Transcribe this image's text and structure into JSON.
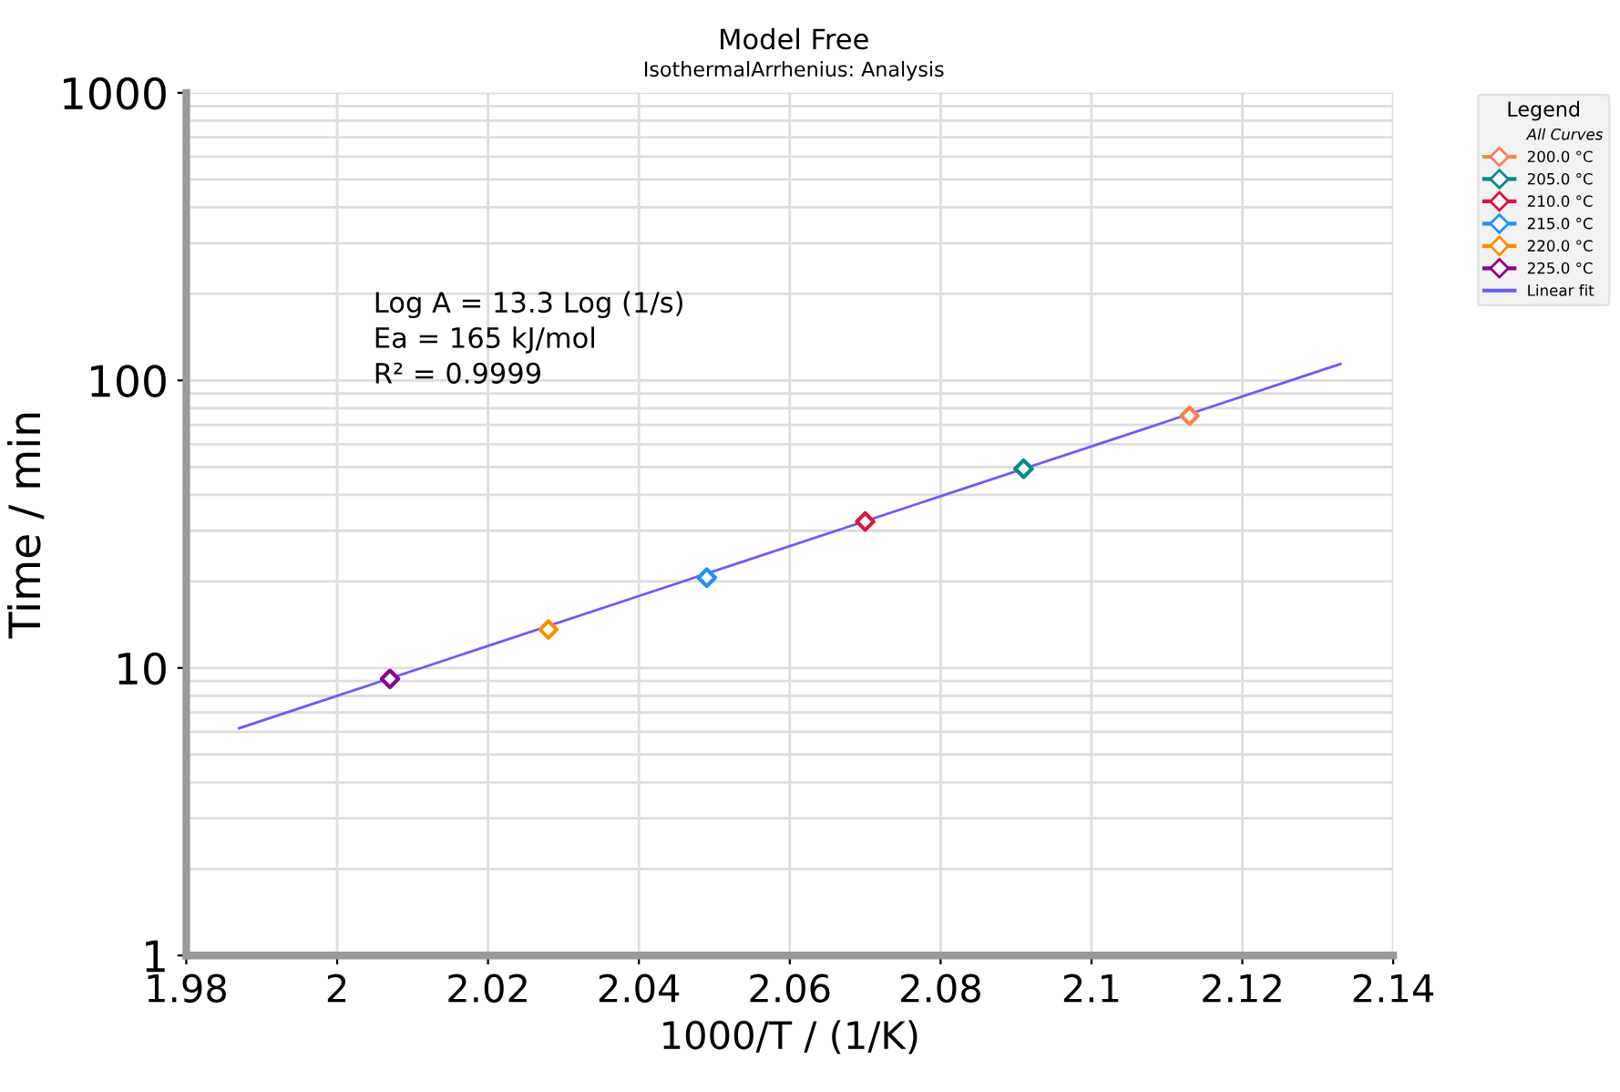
{
  "chart_data": {
    "type": "scatter",
    "title": "Model Free",
    "subtitle": "IsothermalArrhenius: Analysis",
    "xlabel": "1000/T / (1/K)",
    "ylabel": "Time / min",
    "legend_title": "Legend",
    "annotations": [
      "Log A = 13.3 Log (1/s)\nEa = 165 kJ/mol\nR² = 0.9999",
      "All Curves"
    ],
    "log": "y",
    "xlim": [
      1.98,
      2.14
    ],
    "xticks": [
      1.98,
      2,
      2.02,
      2.04,
      2.06,
      2.08,
      2.1,
      2.12,
      2.14
    ],
    "ylim": [
      1,
      1000
    ],
    "yticks": [
      1,
      10,
      100,
      1000
    ],
    "grid": true,
    "legend": "right",
    "marker": "diamond",
    "series": [
      {
        "name": "200.0 °C",
        "color": "#ff7f50",
        "x": [
          2.113
        ],
        "values": [
          75.3
        ]
      },
      {
        "name": "205.0 °C",
        "color": "#008b8b",
        "x": [
          2.091
        ],
        "values": [
          49.3
        ]
      },
      {
        "name": "210.0 °C",
        "color": "#dc143c",
        "x": [
          2.07
        ],
        "values": [
          32.3
        ]
      },
      {
        "name": "215.0 °C",
        "color": "#1e90ff",
        "x": [
          2.049
        ],
        "values": [
          20.6
        ]
      },
      {
        "name": "220.0 °C",
        "color": "#ff8c00",
        "x": [
          2.028
        ],
        "values": [
          13.6
        ]
      },
      {
        "name": "225.0 °C",
        "color": "#8b008b",
        "x": [
          2.007
        ],
        "values": [
          9.16
        ]
      },
      {
        "name": "Linear fit",
        "type": "line",
        "color": "#6a5aff",
        "x": [
          1.987,
          2.133
        ],
        "values": [
          6.17,
          114
        ],
        "marker": "none"
      }
    ]
  }
}
